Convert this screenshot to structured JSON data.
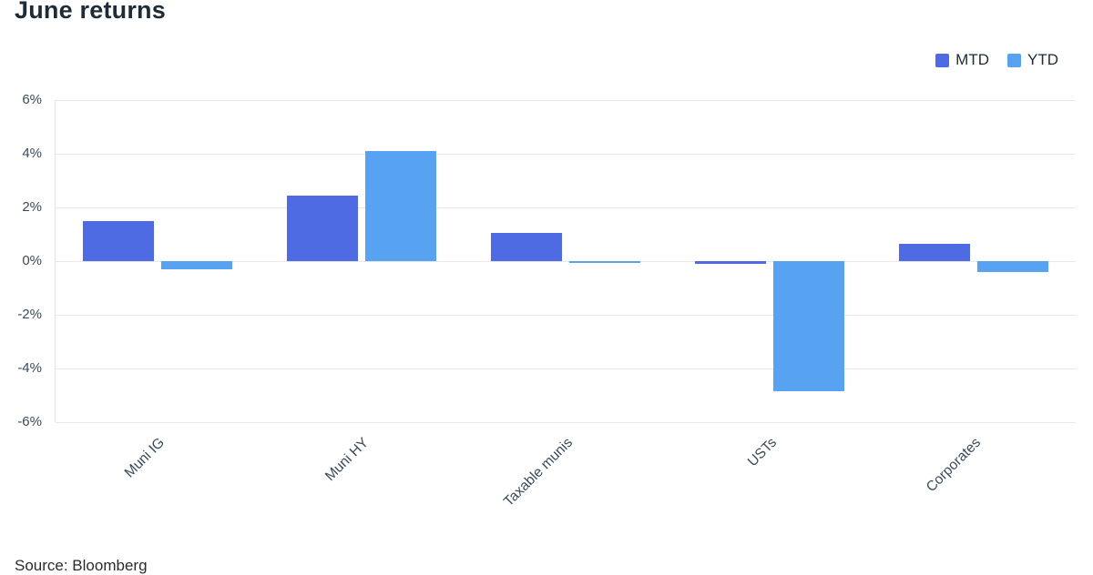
{
  "title": "June returns",
  "source": "Source: Bloomberg",
  "legend": [
    {
      "label": "MTD",
      "color": "#4e6be4"
    },
    {
      "label": "YTD",
      "color": "#57a3f2"
    }
  ],
  "chart_data": {
    "type": "bar",
    "title": "June returns",
    "categories": [
      "Muni IG",
      "Muni HY",
      "Taxable munis",
      "USTs",
      "Corporates"
    ],
    "series": [
      {
        "name": "MTD",
        "color": "#4e6be4",
        "values": [
          1.5,
          2.45,
          1.05,
          -0.1,
          0.65
        ]
      },
      {
        "name": "YTD",
        "color": "#57a3f2",
        "values": [
          -0.3,
          4.1,
          -0.05,
          -4.85,
          -0.4
        ]
      }
    ],
    "xlabel": "",
    "ylabel": "",
    "ylim": [
      -6,
      6
    ],
    "ytick_step": 2,
    "ytick_suffix": "%",
    "yticks": [
      "6%",
      "4%",
      "2%",
      "0%",
      "-2%",
      "-4%",
      "-6%"
    ],
    "grid": true,
    "legend_position": "top-right"
  }
}
